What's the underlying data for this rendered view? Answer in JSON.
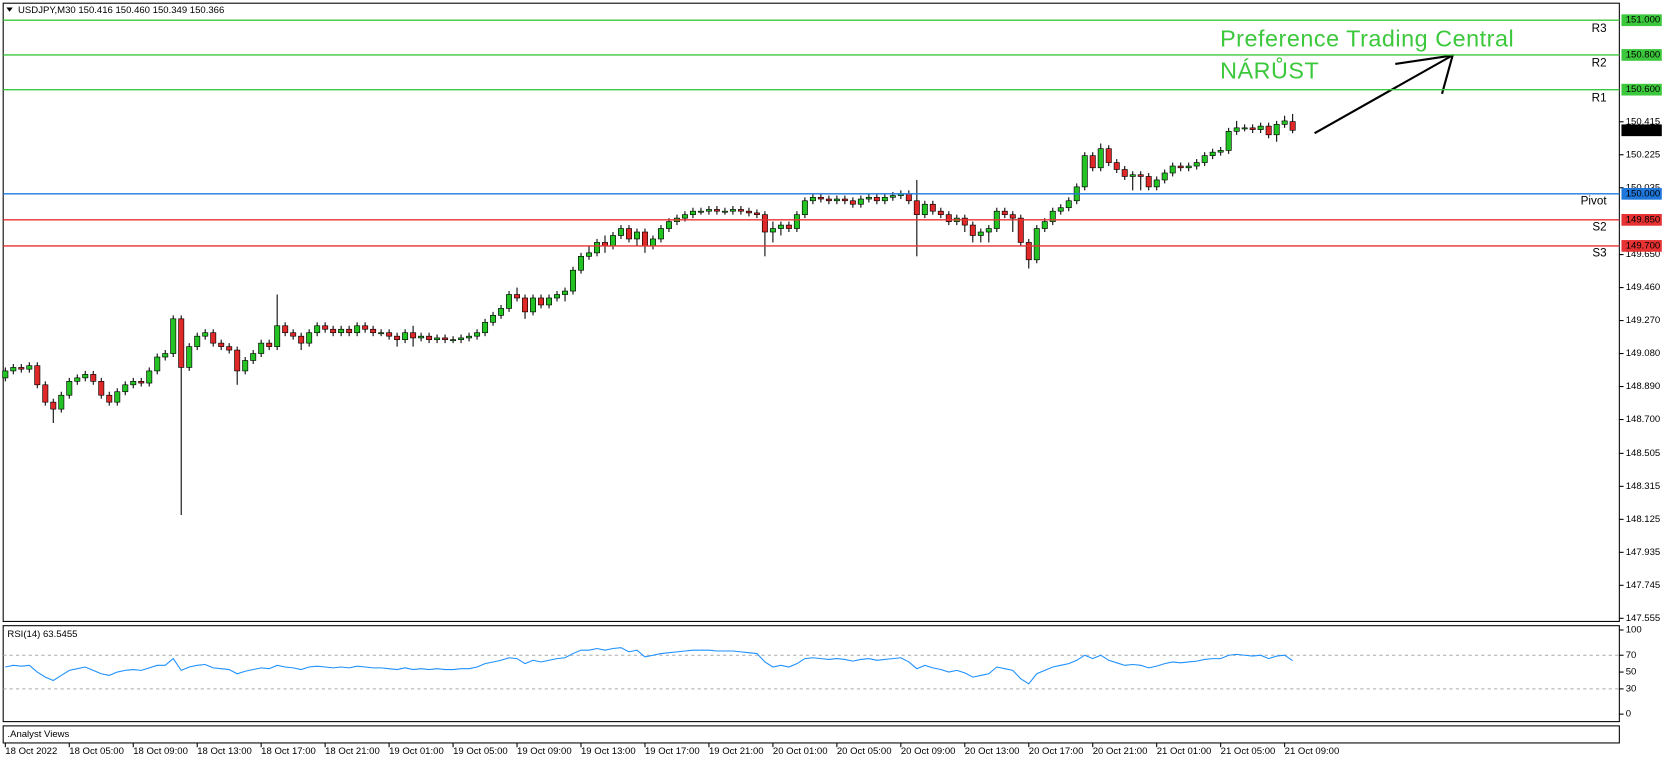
{
  "chart_data": {
    "type": "candlestick",
    "title": "USDJPY,M30  150.416 150.460 150.349 150.366",
    "up_color": "#22c322",
    "down_color": "#e02828",
    "open": [
      148.94,
      148.98,
      149.0,
      148.99,
      149.01,
      148.9,
      148.8,
      148.76,
      148.84,
      148.92,
      148.94,
      148.96,
      148.92,
      148.84,
      148.8,
      148.86,
      148.9,
      148.92,
      148.91,
      148.98,
      149.06,
      149.08,
      149.28,
      149.0,
      149.12,
      149.18,
      149.2,
      149.14,
      149.12,
      149.1,
      148.98,
      149.04,
      149.08,
      149.14,
      149.12,
      149.24,
      149.2,
      149.18,
      149.14,
      149.2,
      149.24,
      149.22,
      149.2,
      149.22,
      149.2,
      149.24,
      149.22,
      149.2,
      149.2,
      149.18,
      149.16,
      149.2,
      149.17,
      149.18,
      149.16,
      149.17,
      149.16,
      149.16,
      149.17,
      149.18,
      149.2,
      149.26,
      149.3,
      149.34,
      149.42,
      149.4,
      149.32,
      149.4,
      149.36,
      149.4,
      149.42,
      149.44,
      149.56,
      149.64,
      149.66,
      149.72,
      149.7,
      149.76,
      149.8,
      149.74,
      149.78,
      149.7,
      149.74,
      149.8,
      149.84,
      149.86,
      149.88,
      149.9,
      149.9,
      149.91,
      149.9,
      149.9,
      149.91,
      149.9,
      149.89,
      149.88,
      149.78,
      149.8,
      149.82,
      149.8,
      149.88,
      149.96,
      149.98,
      149.97,
      149.96,
      149.97,
      149.96,
      149.94,
      149.97,
      149.98,
      149.96,
      149.98,
      149.99,
      150.0,
      149.96,
      149.88,
      149.94,
      149.9,
      149.88,
      149.84,
      149.86,
      149.82,
      149.76,
      149.78,
      149.8,
      149.9,
      149.88,
      149.86,
      149.72,
      149.62,
      149.8,
      149.84,
      149.9,
      149.92,
      149.96,
      150.04,
      150.22,
      150.15,
      150.26,
      150.18,
      150.14,
      150.1,
      150.11,
      150.1,
      150.04,
      150.08,
      150.12,
      150.16,
      150.15,
      150.16,
      150.18,
      150.22,
      150.24,
      150.25,
      150.36,
      150.38,
      150.38,
      150.37,
      150.39,
      150.34,
      150.4,
      150.416
    ],
    "high": [
      149.0,
      149.02,
      149.02,
      149.03,
      149.03,
      148.92,
      148.82,
      148.86,
      148.94,
      148.96,
      148.98,
      148.98,
      148.94,
      148.86,
      148.88,
      148.92,
      148.94,
      148.94,
      149.0,
      149.08,
      149.1,
      149.3,
      149.3,
      149.14,
      149.2,
      149.22,
      149.22,
      149.16,
      149.14,
      149.12,
      149.06,
      149.1,
      149.16,
      149.16,
      149.42,
      149.26,
      149.22,
      149.2,
      149.22,
      149.26,
      149.26,
      149.24,
      149.24,
      149.24,
      149.26,
      149.26,
      149.24,
      149.22,
      149.22,
      149.2,
      149.22,
      149.24,
      149.2,
      149.2,
      149.19,
      149.19,
      149.18,
      149.19,
      149.2,
      149.22,
      149.28,
      149.32,
      149.36,
      149.44,
      149.46,
      149.42,
      149.42,
      149.42,
      149.42,
      149.44,
      149.46,
      149.58,
      149.66,
      149.7,
      149.74,
      149.76,
      149.78,
      149.82,
      149.82,
      149.8,
      149.8,
      149.76,
      149.82,
      149.86,
      149.88,
      149.9,
      149.92,
      149.92,
      149.93,
      149.93,
      149.92,
      149.93,
      149.93,
      149.92,
      149.91,
      149.9,
      149.84,
      149.84,
      149.84,
      149.9,
      149.98,
      150.0,
      150.0,
      149.99,
      149.99,
      149.99,
      149.98,
      149.99,
      150.0,
      150.0,
      150.0,
      150.01,
      150.02,
      150.02,
      150.08,
      149.96,
      149.96,
      149.92,
      149.9,
      149.88,
      149.88,
      149.84,
      149.8,
      149.82,
      149.92,
      149.92,
      149.9,
      149.88,
      149.74,
      149.82,
      149.86,
      149.92,
      149.94,
      149.98,
      150.06,
      150.24,
      150.24,
      150.29,
      150.28,
      150.2,
      150.16,
      150.13,
      150.13,
      150.12,
      150.1,
      150.14,
      150.18,
      150.18,
      150.18,
      150.2,
      150.24,
      150.26,
      150.27,
      150.38,
      150.42,
      150.4,
      150.4,
      150.41,
      150.41,
      150.42,
      150.45,
      150.46
    ],
    "low": [
      148.92,
      148.96,
      148.97,
      148.97,
      148.88,
      148.78,
      148.68,
      148.74,
      148.82,
      148.9,
      148.92,
      148.9,
      148.82,
      148.78,
      148.78,
      148.84,
      148.88,
      148.89,
      148.89,
      148.96,
      149.04,
      149.06,
      148.15,
      148.98,
      149.1,
      149.16,
      149.12,
      149.1,
      149.08,
      148.9,
      148.96,
      149.02,
      149.06,
      149.1,
      149.1,
      149.18,
      149.16,
      149.1,
      149.12,
      149.18,
      149.2,
      149.18,
      149.18,
      149.18,
      149.18,
      149.2,
      149.18,
      149.18,
      149.16,
      149.12,
      149.14,
      149.12,
      149.15,
      149.14,
      149.14,
      149.14,
      149.14,
      149.14,
      149.15,
      149.16,
      149.18,
      149.24,
      149.28,
      149.32,
      149.38,
      149.28,
      149.3,
      149.34,
      149.34,
      149.38,
      149.38,
      149.42,
      149.54,
      149.62,
      149.64,
      149.66,
      149.68,
      149.74,
      149.72,
      149.7,
      149.66,
      149.68,
      149.72,
      149.78,
      149.82,
      149.84,
      149.86,
      149.88,
      149.88,
      149.88,
      149.88,
      149.88,
      149.88,
      149.87,
      149.86,
      149.64,
      149.72,
      149.76,
      149.78,
      149.78,
      149.86,
      149.94,
      149.95,
      149.94,
      149.94,
      149.94,
      149.92,
      149.92,
      149.95,
      149.94,
      149.94,
      149.96,
      149.97,
      149.94,
      149.64,
      149.86,
      149.88,
      149.86,
      149.82,
      149.82,
      149.78,
      149.72,
      149.72,
      149.72,
      149.78,
      149.86,
      149.78,
      149.7,
      149.57,
      149.6,
      149.78,
      149.82,
      149.88,
      149.9,
      149.94,
      150.02,
      150.13,
      150.13,
      150.16,
      150.12,
      150.08,
      150.02,
      150.02,
      150.02,
      150.02,
      150.06,
      150.1,
      150.13,
      150.13,
      150.14,
      150.16,
      150.2,
      150.22,
      150.23,
      150.34,
      150.36,
      150.35,
      150.35,
      150.32,
      150.3,
      150.38,
      150.349
    ],
    "close": [
      148.98,
      149.0,
      148.99,
      149.01,
      148.9,
      148.8,
      148.76,
      148.84,
      148.92,
      148.94,
      148.96,
      148.92,
      148.84,
      148.8,
      148.86,
      148.9,
      148.92,
      148.91,
      148.98,
      149.06,
      149.08,
      149.28,
      149.0,
      149.12,
      149.18,
      149.2,
      149.14,
      149.12,
      149.1,
      148.98,
      149.04,
      149.08,
      149.14,
      149.12,
      149.24,
      149.2,
      149.18,
      149.14,
      149.2,
      149.24,
      149.22,
      149.2,
      149.22,
      149.2,
      149.24,
      149.22,
      149.2,
      149.2,
      149.18,
      149.16,
      149.2,
      149.17,
      149.18,
      149.16,
      149.17,
      149.16,
      149.16,
      149.17,
      149.18,
      149.2,
      149.26,
      149.3,
      149.34,
      149.42,
      149.4,
      149.32,
      149.4,
      149.36,
      149.4,
      149.42,
      149.44,
      149.56,
      149.64,
      149.66,
      149.72,
      149.7,
      149.76,
      149.8,
      149.74,
      149.78,
      149.7,
      149.74,
      149.8,
      149.84,
      149.86,
      149.88,
      149.9,
      149.9,
      149.91,
      149.9,
      149.9,
      149.91,
      149.9,
      149.89,
      149.88,
      149.78,
      149.8,
      149.82,
      149.8,
      149.88,
      149.96,
      149.98,
      149.97,
      149.96,
      149.97,
      149.96,
      149.94,
      149.97,
      149.98,
      149.96,
      149.98,
      149.99,
      150.0,
      149.96,
      149.88,
      149.94,
      149.9,
      149.88,
      149.84,
      149.86,
      149.82,
      149.76,
      149.78,
      149.8,
      149.9,
      149.88,
      149.86,
      149.72,
      149.62,
      149.8,
      149.84,
      149.9,
      149.92,
      149.96,
      150.04,
      150.22,
      150.15,
      150.26,
      150.18,
      150.14,
      150.1,
      150.11,
      150.1,
      150.04,
      150.08,
      150.12,
      150.16,
      150.15,
      150.16,
      150.18,
      150.22,
      150.24,
      150.25,
      150.36,
      150.38,
      150.38,
      150.37,
      150.39,
      150.34,
      150.4,
      150.42,
      150.366
    ],
    "ylim": [
      147.537,
      151.098
    ],
    "yticks": [
      150.415,
      150.225,
      150.035,
      {
        "value": 149.65,
        "label": "149.650"
      },
      {
        "value": 149.46,
        "label": "149.460"
      },
      {
        "value": 149.27,
        "label": "149.270"
      },
      {
        "value": 149.08,
        "label": "149.080"
      },
      {
        "value": 148.89,
        "label": "148.890"
      },
      {
        "value": 148.7,
        "label": "148.700"
      },
      148.505,
      148.315,
      148.125,
      147.935,
      147.745,
      147.555
    ],
    "x_labels": [
      "18 Oct 2022",
      "18 Oct 05:00",
      "18 Oct 09:00",
      "18 Oct 13:00",
      "18 Oct 17:00",
      "18 Oct 21:00",
      "19 Oct 01:00",
      "19 Oct 05:00",
      "19 Oct 09:00",
      "19 Oct 13:00",
      "19 Oct 17:00",
      "19 Oct 21:00",
      "20 Oct 01:00",
      "20 Oct 05:00",
      "20 Oct 09:00",
      "20 Oct 13:00",
      "20 Oct 17:00",
      "20 Oct 21:00",
      "21 Oct 01:00",
      "21 Oct 05:00",
      "21 Oct 09:00"
    ],
    "levels": [
      {
        "name": "R3",
        "value": 151,
        "label": "151.000",
        "color": "#3cc83c"
      },
      {
        "name": "R2",
        "value": 150.8,
        "label": "150.800",
        "color": "#3cc83c"
      },
      {
        "name": "R1",
        "value": 150.6,
        "label": "150.600",
        "color": "#3cc83c"
      },
      {
        "name": "Pivot",
        "value": 150,
        "label": "150.000",
        "color": "#1e78dc"
      },
      {
        "name": "S2",
        "value": 149.85,
        "label": "149.850",
        "color": "#e63232"
      },
      {
        "name": "S3",
        "value": 149.7,
        "label": "149.700",
        "color": "#e63232"
      }
    ],
    "annotations": [
      "Preference Trading Central",
      "NÁRŮST"
    ],
    "footer": ".Analyst Views",
    "rsi": {
      "title": "RSI(14) 63.5455",
      "color": "#1e90ff",
      "ylim": [
        -8.9,
        105.1
      ],
      "yticks": [
        100,
        70,
        50,
        30,
        0
      ],
      "levels": [
        70,
        30
      ],
      "values": [
        56,
        58,
        57,
        58,
        50,
        44,
        40,
        46,
        52,
        54,
        56,
        52,
        48,
        46,
        50,
        52,
        53,
        52,
        55,
        58,
        58,
        66,
        52,
        56,
        58,
        59,
        55,
        54,
        53,
        48,
        51,
        53,
        55,
        54,
        58,
        56,
        55,
        53,
        56,
        57,
        56,
        55,
        56,
        55,
        57,
        56,
        55,
        55,
        54,
        53,
        55,
        53,
        54,
        53,
        54,
        53,
        53,
        54,
        54,
        56,
        60,
        62,
        64,
        67,
        66,
        60,
        64,
        62,
        64,
        66,
        67,
        72,
        76,
        76,
        78,
        76,
        78,
        79,
        74,
        76,
        68,
        70,
        72,
        73,
        74,
        75,
        76,
        76,
        76,
        75,
        75,
        75,
        74,
        73,
        72,
        62,
        56,
        58,
        56,
        60,
        66,
        67,
        66,
        65,
        66,
        65,
        63,
        65,
        66,
        64,
        65,
        66,
        67,
        62,
        54,
        58,
        55,
        53,
        50,
        52,
        49,
        44,
        46,
        48,
        56,
        54,
        52,
        42,
        36,
        48,
        52,
        56,
        58,
        60,
        64,
        70,
        66,
        70,
        64,
        61,
        58,
        59,
        58,
        55,
        57,
        60,
        62,
        61,
        62,
        63,
        65,
        66,
        66,
        70,
        71,
        70,
        69,
        70,
        66,
        69,
        70,
        63.5455
      ]
    }
  }
}
